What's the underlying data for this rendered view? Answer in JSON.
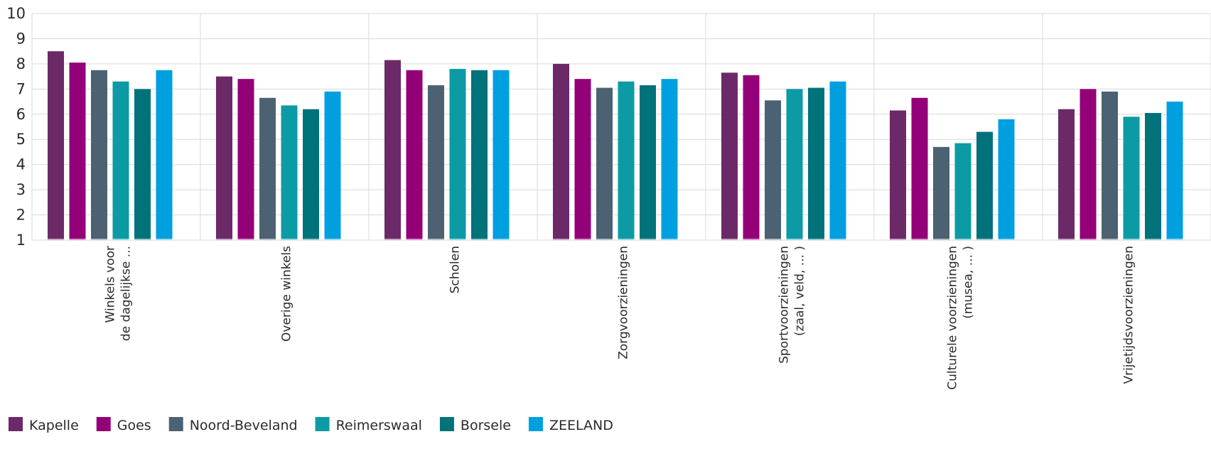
{
  "chart_data": {
    "type": "bar",
    "categories": [
      [
        "Winkels voor",
        "de dagelijkse ..."
      ],
      [
        "Overige winkels"
      ],
      [
        "Scholen"
      ],
      [
        "Zorgvoorzieningen"
      ],
      [
        "Sportvoorzieningen",
        "(zaal, veld, ... )"
      ],
      [
        "Culturele voorzieningen",
        "(musea, ... )"
      ],
      [
        "Vrijetijdsvoorzieningen"
      ]
    ],
    "series": [
      {
        "name": "Kapelle",
        "color": "#6b2a67",
        "values": [
          8.5,
          7.5,
          8.15,
          8.0,
          7.65,
          6.15,
          6.2
        ]
      },
      {
        "name": "Goes",
        "color": "#930078",
        "values": [
          8.05,
          7.4,
          7.75,
          7.4,
          7.55,
          6.65,
          7.0
        ]
      },
      {
        "name": "Noord-Beveland",
        "color": "#4c6272",
        "values": [
          7.75,
          6.65,
          7.15,
          7.05,
          6.55,
          4.7,
          6.9
        ]
      },
      {
        "name": "Reimerswaal",
        "color": "#0c9ba4",
        "values": [
          7.3,
          6.35,
          7.8,
          7.3,
          7.0,
          4.85,
          5.9
        ]
      },
      {
        "name": "Borsele",
        "color": "#00727a",
        "values": [
          7.0,
          6.2,
          7.75,
          7.15,
          7.05,
          5.3,
          6.05
        ]
      },
      {
        "name": "ZEELAND",
        "color": "#009fe0",
        "values": [
          7.75,
          6.9,
          7.75,
          7.4,
          7.3,
          5.8,
          6.5
        ]
      }
    ],
    "ylim": [
      1,
      10
    ],
    "yticks": [
      "1",
      "2",
      "3",
      "4",
      "5",
      "6",
      "7",
      "8",
      "9",
      "10"
    ],
    "grid": true,
    "legend_position": "bottom-left"
  }
}
